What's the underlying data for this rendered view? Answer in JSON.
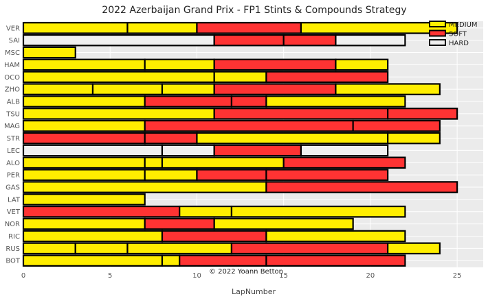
{
  "chart_data": {
    "type": "bar",
    "orientation": "horizontal-stacked",
    "title": "2022 Azerbaijan Grand Prix - FP1 Stints & Compounds Strategy",
    "xlabel": "LapNumber",
    "ylabel": "",
    "xlim": [
      0,
      26.5
    ],
    "xticks": [
      0,
      5,
      10,
      15,
      20,
      25
    ],
    "grid": true,
    "legend_position": "top-right",
    "credit": "© 2022 Yoann Betton",
    "compounds": [
      {
        "name": "MEDIUM",
        "color": "#ffee00"
      },
      {
        "name": "SOFT",
        "color": "#ff3333"
      },
      {
        "name": "HARD",
        "color": "#f0f0f0"
      }
    ],
    "drivers": [
      {
        "name": "VER",
        "stints": [
          {
            "compound": "MEDIUM",
            "start": 0,
            "end": 6
          },
          {
            "compound": "MEDIUM",
            "start": 6,
            "end": 10
          },
          {
            "compound": "SOFT",
            "start": 10,
            "end": 16
          },
          {
            "compound": "MEDIUM",
            "start": 16,
            "end": 25
          }
        ]
      },
      {
        "name": "SAI",
        "stints": [
          {
            "compound": "HARD",
            "start": 0,
            "end": 11
          },
          {
            "compound": "SOFT",
            "start": 11,
            "end": 15
          },
          {
            "compound": "SOFT",
            "start": 15,
            "end": 18
          },
          {
            "compound": "HARD",
            "start": 18,
            "end": 22
          }
        ]
      },
      {
        "name": "MSC",
        "stints": [
          {
            "compound": "MEDIUM",
            "start": 0,
            "end": 3
          }
        ]
      },
      {
        "name": "HAM",
        "stints": [
          {
            "compound": "MEDIUM",
            "start": 0,
            "end": 7
          },
          {
            "compound": "MEDIUM",
            "start": 7,
            "end": 11
          },
          {
            "compound": "SOFT",
            "start": 11,
            "end": 18
          },
          {
            "compound": "MEDIUM",
            "start": 18,
            "end": 21
          }
        ]
      },
      {
        "name": "OCO",
        "stints": [
          {
            "compound": "MEDIUM",
            "start": 0,
            "end": 11
          },
          {
            "compound": "MEDIUM",
            "start": 11,
            "end": 14
          },
          {
            "compound": "SOFT",
            "start": 14,
            "end": 21
          }
        ]
      },
      {
        "name": "ZHO",
        "stints": [
          {
            "compound": "MEDIUM",
            "start": 0,
            "end": 4
          },
          {
            "compound": "MEDIUM",
            "start": 4,
            "end": 8
          },
          {
            "compound": "MEDIUM",
            "start": 8,
            "end": 11
          },
          {
            "compound": "SOFT",
            "start": 11,
            "end": 18
          },
          {
            "compound": "MEDIUM",
            "start": 18,
            "end": 24
          }
        ]
      },
      {
        "name": "ALB",
        "stints": [
          {
            "compound": "MEDIUM",
            "start": 0,
            "end": 7
          },
          {
            "compound": "SOFT",
            "start": 7,
            "end": 12
          },
          {
            "compound": "SOFT",
            "start": 12,
            "end": 14
          },
          {
            "compound": "MEDIUM",
            "start": 14,
            "end": 22
          }
        ]
      },
      {
        "name": "TSU",
        "stints": [
          {
            "compound": "MEDIUM",
            "start": 0,
            "end": 11
          },
          {
            "compound": "SOFT",
            "start": 11,
            "end": 21
          },
          {
            "compound": "SOFT",
            "start": 21,
            "end": 25
          }
        ]
      },
      {
        "name": "MAG",
        "stints": [
          {
            "compound": "MEDIUM",
            "start": 0,
            "end": 7
          },
          {
            "compound": "SOFT",
            "start": 7,
            "end": 19
          },
          {
            "compound": "SOFT",
            "start": 19,
            "end": 24
          }
        ]
      },
      {
        "name": "STR",
        "stints": [
          {
            "compound": "SOFT",
            "start": 0,
            "end": 7
          },
          {
            "compound": "SOFT",
            "start": 7,
            "end": 10
          },
          {
            "compound": "MEDIUM",
            "start": 10,
            "end": 21
          },
          {
            "compound": "MEDIUM",
            "start": 21,
            "end": 24
          }
        ]
      },
      {
        "name": "LEC",
        "stints": [
          {
            "compound": "HARD",
            "start": 0,
            "end": 8
          },
          {
            "compound": "HARD",
            "start": 8,
            "end": 11
          },
          {
            "compound": "SOFT",
            "start": 11,
            "end": 16
          },
          {
            "compound": "HARD",
            "start": 16,
            "end": 21
          }
        ]
      },
      {
        "name": "ALO",
        "stints": [
          {
            "compound": "MEDIUM",
            "start": 0,
            "end": 7
          },
          {
            "compound": "MEDIUM",
            "start": 7,
            "end": 8
          },
          {
            "compound": "MEDIUM",
            "start": 8,
            "end": 15
          },
          {
            "compound": "SOFT",
            "start": 15,
            "end": 22
          }
        ]
      },
      {
        "name": "PER",
        "stints": [
          {
            "compound": "MEDIUM",
            "start": 0,
            "end": 7
          },
          {
            "compound": "MEDIUM",
            "start": 7,
            "end": 10
          },
          {
            "compound": "SOFT",
            "start": 10,
            "end": 14
          },
          {
            "compound": "SOFT",
            "start": 14,
            "end": 21
          }
        ]
      },
      {
        "name": "GAS",
        "stints": [
          {
            "compound": "MEDIUM",
            "start": 0,
            "end": 14
          },
          {
            "compound": "SOFT",
            "start": 14,
            "end": 25
          }
        ]
      },
      {
        "name": "LAT",
        "stints": [
          {
            "compound": "MEDIUM",
            "start": 0,
            "end": 7
          }
        ]
      },
      {
        "name": "VET",
        "stints": [
          {
            "compound": "SOFT",
            "start": 0,
            "end": 9
          },
          {
            "compound": "MEDIUM",
            "start": 9,
            "end": 12
          },
          {
            "compound": "MEDIUM",
            "start": 12,
            "end": 22
          }
        ]
      },
      {
        "name": "NOR",
        "stints": [
          {
            "compound": "MEDIUM",
            "start": 0,
            "end": 7
          },
          {
            "compound": "SOFT",
            "start": 7,
            "end": 11
          },
          {
            "compound": "MEDIUM",
            "start": 11,
            "end": 19
          }
        ]
      },
      {
        "name": "RIC",
        "stints": [
          {
            "compound": "MEDIUM",
            "start": 0,
            "end": 8
          },
          {
            "compound": "SOFT",
            "start": 8,
            "end": 14
          },
          {
            "compound": "MEDIUM",
            "start": 14,
            "end": 22
          }
        ]
      },
      {
        "name": "RUS",
        "stints": [
          {
            "compound": "MEDIUM",
            "start": 0,
            "end": 3
          },
          {
            "compound": "MEDIUM",
            "start": 3,
            "end": 6
          },
          {
            "compound": "MEDIUM",
            "start": 6,
            "end": 12
          },
          {
            "compound": "SOFT",
            "start": 12,
            "end": 21
          },
          {
            "compound": "MEDIUM",
            "start": 21,
            "end": 24
          }
        ]
      },
      {
        "name": "BOT",
        "stints": [
          {
            "compound": "MEDIUM",
            "start": 0,
            "end": 8
          },
          {
            "compound": "MEDIUM",
            "start": 8,
            "end": 9
          },
          {
            "compound": "SOFT",
            "start": 9,
            "end": 14
          },
          {
            "compound": "SOFT",
            "start": 14,
            "end": 22
          }
        ]
      }
    ]
  }
}
